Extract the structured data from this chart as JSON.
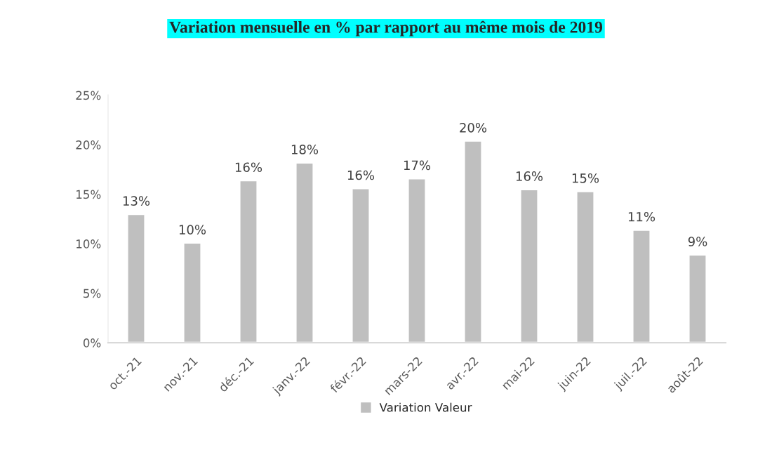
{
  "chart_data": {
    "type": "bar",
    "title": "Variation mensuelle en % par rapport au même mois de 2019",
    "categories": [
      "oct.-21",
      "nov.-21",
      "déc.-21",
      "janv.-22",
      "févr.-22",
      "mars-22",
      "avr.-22",
      "mai-22",
      "juin-22",
      "juil.-22",
      "août-22"
    ],
    "series": [
      {
        "name": "Variation Valeur",
        "color": "#bfbfbf",
        "values": [
          13.0,
          10.1,
          16.4,
          18.2,
          15.6,
          16.6,
          20.4,
          15.5,
          15.3,
          11.4,
          8.9
        ],
        "value_labels": [
          "13%",
          "10%",
          "16%",
          "18%",
          "16%",
          "17%",
          "20%",
          "16%",
          "15%",
          "11%",
          "9%"
        ]
      }
    ],
    "ylim": [
      0,
      25
    ],
    "yticks": [
      {
        "value": 0,
        "label": "0%"
      },
      {
        "value": 5,
        "label": "5%"
      },
      {
        "value": 10,
        "label": "10%"
      },
      {
        "value": 15,
        "label": "15%"
      },
      {
        "value": 20,
        "label": "20%"
      },
      {
        "value": 25,
        "label": "25%"
      }
    ],
    "grid": false,
    "legend": "bottom"
  }
}
